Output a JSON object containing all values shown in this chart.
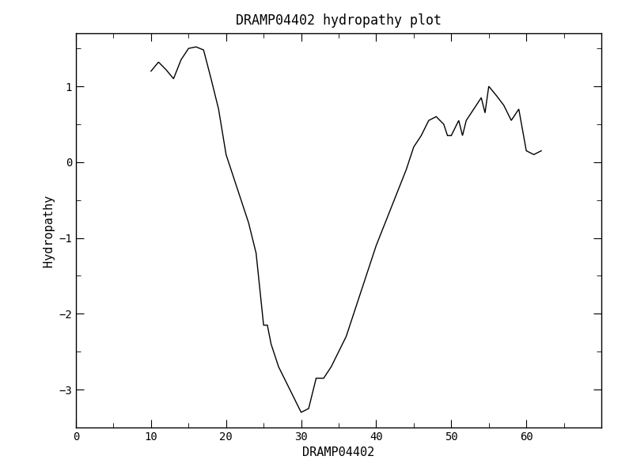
{
  "title": "DRAMP04402 hydropathy plot",
  "xlabel": "DRAMP04402",
  "ylabel": "Hydropathy",
  "xlim": [
    0,
    70
  ],
  "ylim": [
    -3.5,
    1.7
  ],
  "xticks": [
    0,
    10,
    20,
    30,
    40,
    50,
    60
  ],
  "yticks": [
    -3,
    -2,
    -1,
    0,
    1
  ],
  "line_color": "#000000",
  "background_color": "#ffffff",
  "x": [
    10,
    11,
    12,
    13,
    14,
    15,
    16,
    17,
    18,
    19,
    20,
    21,
    22,
    23,
    24,
    25,
    25.5,
    26,
    27,
    28,
    29,
    30,
    31,
    32,
    32.5,
    33,
    34,
    35,
    36,
    37,
    38,
    39,
    40,
    41,
    42,
    43,
    44,
    45,
    46,
    47,
    48,
    49,
    49.5,
    50,
    51,
    51.5,
    52,
    53,
    54,
    54.5,
    55,
    56,
    57,
    58,
    59,
    60,
    61,
    62
  ],
  "y": [
    1.2,
    1.32,
    1.22,
    1.1,
    1.35,
    1.5,
    1.52,
    1.48,
    1.1,
    0.7,
    0.1,
    -0.2,
    -0.5,
    -0.8,
    -1.2,
    -2.15,
    -2.15,
    -2.4,
    -2.7,
    -2.9,
    -3.1,
    -3.3,
    -3.25,
    -2.85,
    -2.85,
    -2.85,
    -2.7,
    -2.5,
    -2.3,
    -2.0,
    -1.7,
    -1.4,
    -1.1,
    -0.85,
    -0.6,
    -0.35,
    -0.1,
    0.2,
    0.35,
    0.55,
    0.6,
    0.5,
    0.35,
    0.35,
    0.55,
    0.35,
    0.55,
    0.7,
    0.85,
    0.65,
    1.0,
    0.88,
    0.75,
    0.55,
    0.7,
    0.15,
    0.1,
    0.15
  ]
}
